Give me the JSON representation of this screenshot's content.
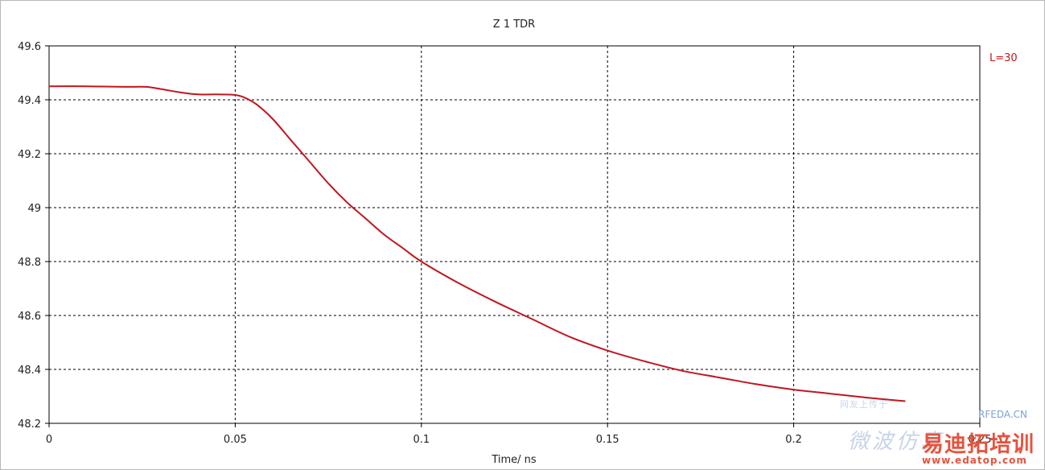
{
  "chart_data": {
    "type": "line",
    "title": "Z 1 TDR",
    "xlabel": "Time/ ns",
    "ylabel": "",
    "xlim": [
      0,
      0.25
    ],
    "ylim": [
      48.2,
      49.6
    ],
    "xticks": [
      0,
      0.05,
      0.1,
      0.15,
      0.2,
      0.25
    ],
    "xtick_labels": [
      "0",
      "0.05",
      "0.1",
      "0.15",
      "0.2",
      "0.25"
    ],
    "yticks": [
      48.2,
      48.4,
      48.6,
      48.8,
      49,
      49.2,
      49.4,
      49.6
    ],
    "ytick_labels": [
      "48.2",
      "48.4",
      "48.6",
      "48.8",
      "49",
      "49.2",
      "49.4",
      "49.6"
    ],
    "grid": true,
    "legend_position": "top-right",
    "series": [
      {
        "name": "L=30",
        "color": "#c0161e",
        "x": [
          0,
          0.01,
          0.02,
          0.026,
          0.03,
          0.035,
          0.04,
          0.045,
          0.05,
          0.053,
          0.056,
          0.06,
          0.065,
          0.07,
          0.075,
          0.08,
          0.085,
          0.09,
          0.095,
          0.1,
          0.11,
          0.12,
          0.13,
          0.14,
          0.15,
          0.16,
          0.17,
          0.18,
          0.19,
          0.2,
          0.21,
          0.22,
          0.23
        ],
        "values": [
          49.45,
          49.45,
          49.448,
          49.448,
          49.44,
          49.428,
          49.42,
          49.42,
          49.418,
          49.405,
          49.38,
          49.33,
          49.25,
          49.17,
          49.09,
          49.02,
          48.96,
          48.9,
          48.85,
          48.8,
          48.72,
          48.65,
          48.585,
          48.52,
          48.47,
          48.43,
          48.395,
          48.37,
          48.345,
          48.325,
          48.31,
          48.295,
          48.282
        ]
      }
    ]
  },
  "watermark": {
    "line1": "网友上传于",
    "line1b": "",
    "line2": "微波仿真",
    "site_suffix": "RFEDA.CN",
    "brand": "易迪拓培训",
    "url": "www.edatop.com"
  }
}
